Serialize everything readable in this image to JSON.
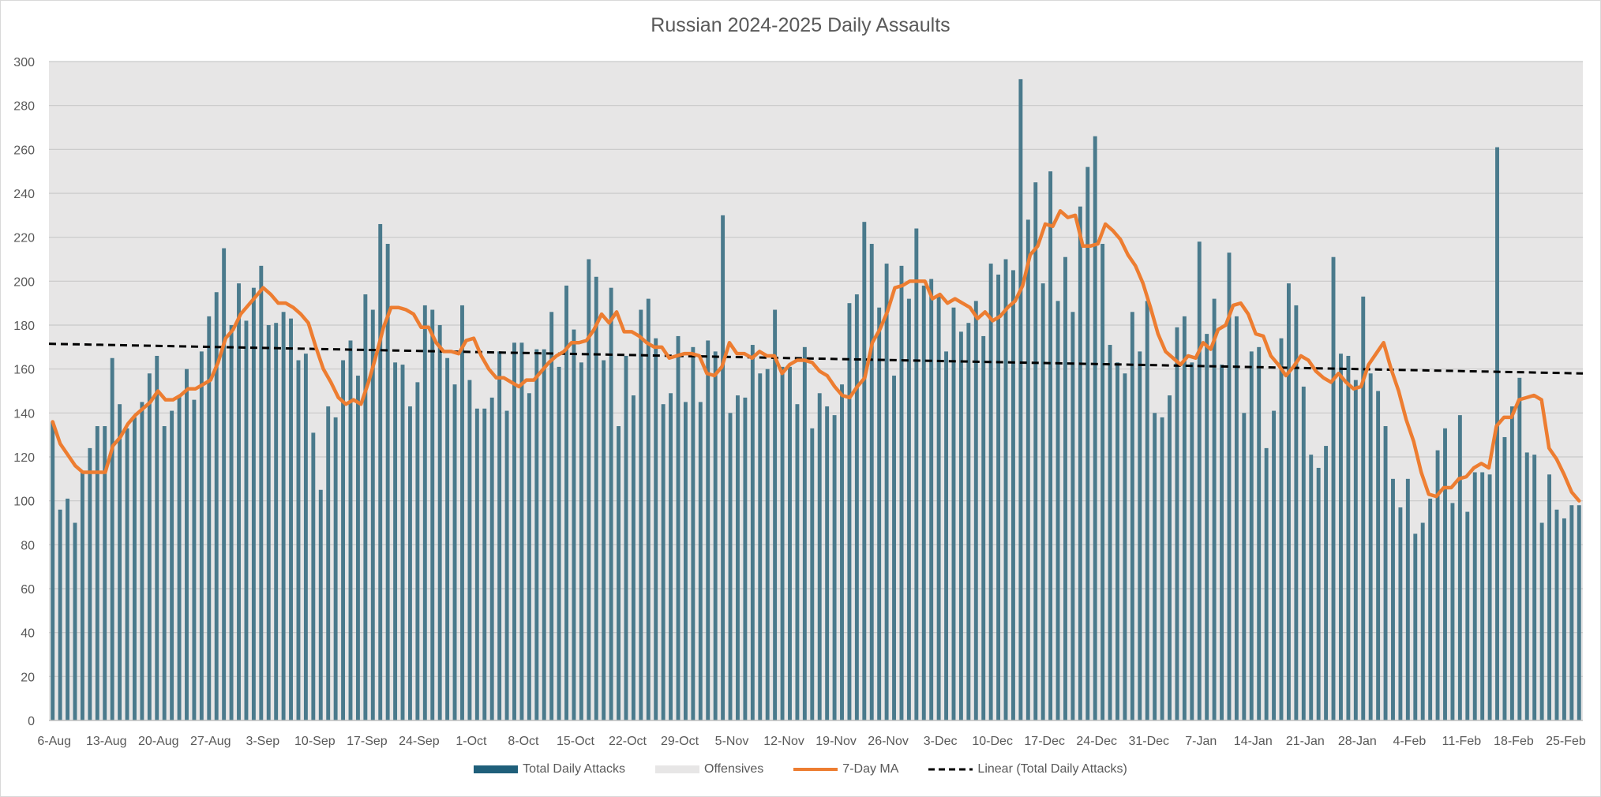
{
  "chart_data": {
    "type": "bar",
    "title": "Russian 2024-2025 Daily Assaults",
    "xlabel": "",
    "ylabel": "",
    "ylim": [
      0,
      300
    ],
    "yticks": [
      0,
      20,
      40,
      60,
      80,
      100,
      120,
      140,
      160,
      180,
      200,
      220,
      240,
      260,
      280,
      300
    ],
    "x_tick_labels": [
      "6-Aug",
      "13-Aug",
      "20-Aug",
      "27-Aug",
      "3-Sep",
      "10-Sep",
      "17-Sep",
      "24-Sep",
      "1-Oct",
      "8-Oct",
      "15-Oct",
      "22-Oct",
      "29-Oct",
      "5-Nov",
      "12-Nov",
      "19-Nov",
      "26-Nov",
      "3-Dec",
      "10-Dec",
      "17-Dec",
      "24-Dec",
      "31-Dec",
      "7-Jan",
      "14-Jan",
      "21-Jan",
      "28-Jan",
      "4-Feb",
      "11-Feb",
      "18-Feb",
      "25-Feb"
    ],
    "grid": true,
    "legend_position": "bottom",
    "series": [
      {
        "name": "Total Daily Attacks",
        "kind": "bar",
        "color": "#4a7a8c",
        "values": [
          136,
          96,
          101,
          90,
          113,
          124,
          134,
          134,
          165,
          144,
          133,
          138,
          145,
          158,
          166,
          134,
          141,
          148,
          160,
          146,
          168,
          184,
          195,
          215,
          180,
          199,
          182,
          197,
          207,
          180,
          181,
          186,
          183,
          164,
          167,
          131,
          105,
          143,
          138,
          164,
          173,
          157,
          194,
          187,
          226,
          217,
          163,
          162,
          143,
          154,
          189,
          187,
          180,
          165,
          153,
          189,
          155,
          142,
          142,
          147,
          168,
          141,
          172,
          172,
          149,
          169,
          169,
          186,
          161,
          198,
          178,
          163,
          210,
          202,
          164,
          197,
          134,
          166,
          148,
          187,
          192,
          174,
          144,
          149,
          175,
          145,
          170,
          145,
          173,
          168,
          230,
          140,
          148,
          147,
          171,
          158,
          160,
          187,
          161,
          161,
          144,
          170,
          133,
          149,
          143,
          139,
          153,
          190,
          194,
          227,
          217,
          188,
          208,
          157,
          207,
          192,
          224,
          198,
          201,
          194,
          168,
          188,
          177,
          181,
          191,
          175,
          208,
          203,
          210,
          205,
          292,
          228,
          245,
          199,
          250,
          191,
          211,
          186,
          234,
          252,
          266,
          217,
          171,
          163,
          158,
          186,
          168,
          191,
          140,
          138,
          148,
          179,
          184,
          163,
          218,
          176,
          192,
          162,
          213,
          184,
          140,
          168,
          170,
          124,
          141,
          174,
          199,
          189,
          152,
          121,
          115,
          125,
          211,
          167,
          166,
          155,
          193,
          158,
          150,
          134,
          110,
          97,
          110,
          85,
          90,
          101,
          123,
          133,
          99,
          139,
          95,
          113,
          113,
          112,
          261,
          129,
          143,
          156,
          122,
          121,
          90,
          112,
          96,
          92,
          98,
          98
        ]
      },
      {
        "name": "Offensives",
        "kind": "bar",
        "color": "#e7e6e6",
        "values": []
      },
      {
        "name": "7-Day MA",
        "kind": "line",
        "color": "#ed7d31",
        "values": [
          136,
          126,
          121,
          116,
          113,
          113,
          113,
          113,
          125,
          129,
          135,
          139,
          142,
          145,
          150,
          146,
          146,
          148,
          151,
          151,
          153,
          155,
          163,
          174,
          178,
          185,
          189,
          193,
          197,
          194,
          190,
          190,
          188,
          185,
          181,
          170,
          160,
          154,
          147,
          144,
          146,
          144,
          154,
          166,
          179,
          188,
          188,
          187,
          185,
          179,
          179,
          172,
          168,
          168,
          167,
          173,
          174,
          166,
          160,
          156,
          156,
          154,
          152,
          155,
          155,
          159,
          163,
          166,
          168,
          172,
          172,
          173,
          178,
          185,
          181,
          186,
          177,
          177,
          175,
          172,
          170,
          170,
          165,
          166,
          167,
          167,
          166,
          158,
          157,
          161,
          172,
          167,
          167,
          165,
          168,
          166,
          166,
          158,
          162,
          164,
          164,
          163,
          159,
          157,
          152,
          148,
          147,
          152,
          156,
          172,
          178,
          186,
          197,
          198,
          200,
          200,
          200,
          192,
          194,
          190,
          192,
          190,
          188,
          183,
          186,
          182,
          184,
          188,
          191,
          198,
          212,
          216,
          226,
          225,
          232,
          229,
          230,
          216,
          216,
          217,
          226,
          223,
          219,
          212,
          207,
          199,
          188,
          176,
          168,
          165,
          162,
          166,
          165,
          172,
          169,
          178,
          180,
          189,
          190,
          185,
          176,
          175,
          166,
          162,
          157,
          161,
          166,
          164,
          159,
          156,
          154,
          158,
          154,
          151,
          152,
          162,
          167,
          172,
          160,
          150,
          137,
          127,
          113,
          103,
          102,
          106,
          106,
          110,
          111,
          115,
          117,
          115,
          134,
          138,
          138,
          146,
          147,
          148,
          146,
          124,
          119,
          112,
          104,
          100
        ]
      },
      {
        "name": "Linear (Total Daily Attacks)",
        "kind": "trendline",
        "color": "#000000",
        "start_value": 171.5,
        "end_value": 158.0
      }
    ]
  }
}
